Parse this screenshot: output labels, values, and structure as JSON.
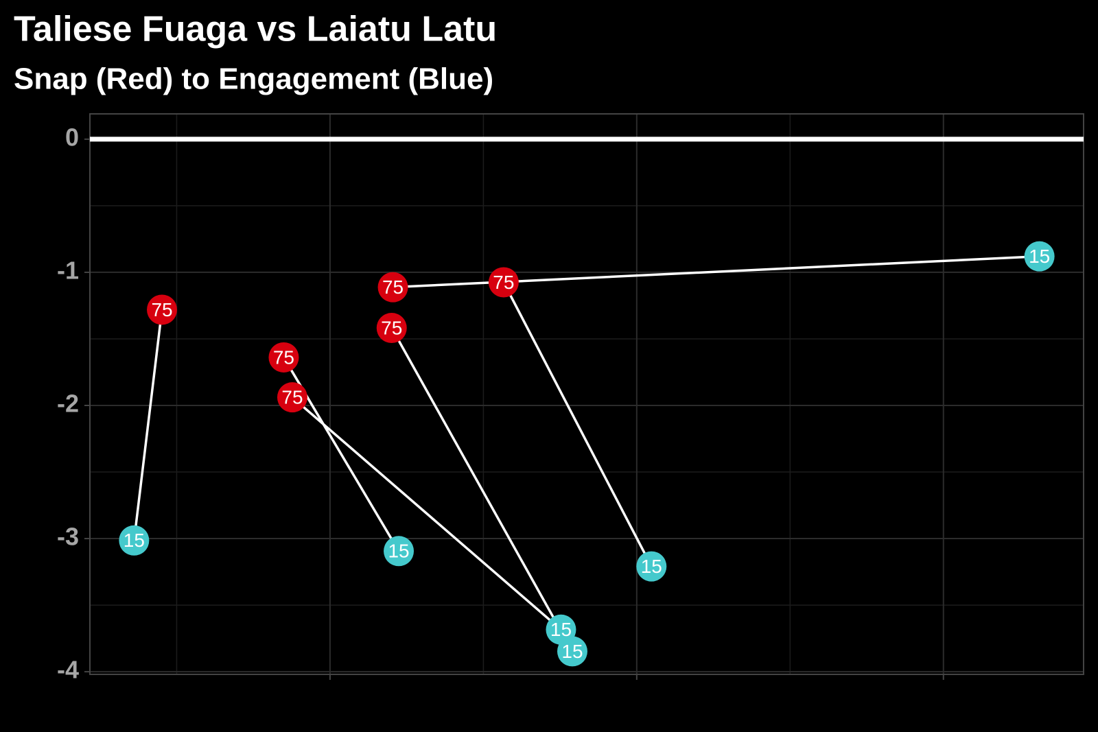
{
  "chart_data": {
    "type": "segment",
    "title": "Taliese Fuaga vs Laiatu Latu",
    "subtitle": "Snap (Red) to Engagement (Blue)",
    "xlim": [
      -1.783,
      1.457
    ],
    "xticks": [
      -1,
      0,
      1
    ],
    "minor_xticks": [
      -1.5,
      -0.5,
      0.5
    ],
    "ylim": [
      -4.02,
      0.19
    ],
    "yticks": [
      -4,
      -3,
      -2,
      -1,
      0
    ],
    "minor_yticks": [
      -3.5,
      -2.5,
      -1.5,
      -0.5
    ],
    "grid": true,
    "hline": 0,
    "line_color": "#ffffff",
    "series": [
      {
        "label": "75",
        "color": "#d7000f",
        "x": [
          -1.548,
          -0.795,
          -0.434,
          -0.799,
          -1.151,
          -1.123
        ],
        "y": [
          -1.281,
          -1.112,
          -1.075,
          -1.418,
          -1.639,
          -1.939
        ]
      },
      {
        "label": "15",
        "color": "#45c9cc",
        "x": [
          -1.639,
          1.313,
          0.048,
          -0.21,
          -0.776,
          -0.247
        ],
        "y": [
          -3.014,
          -0.88,
          -3.209,
          -3.847,
          -3.094,
          -3.684
        ]
      }
    ]
  }
}
